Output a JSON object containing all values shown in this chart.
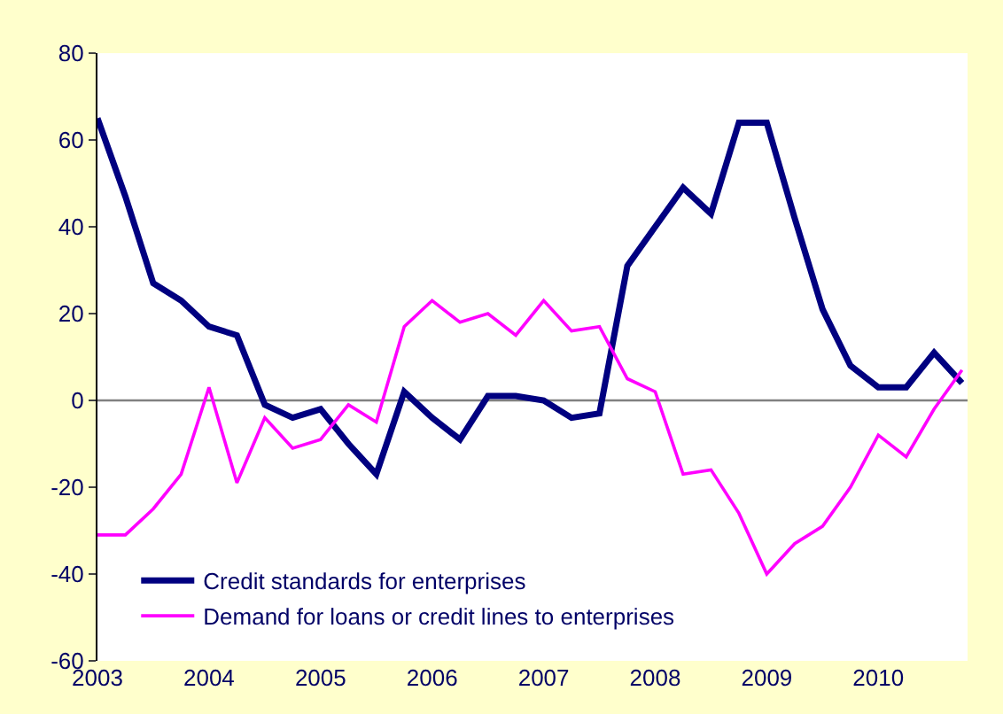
{
  "chart_data": {
    "type": "line",
    "x": [
      2003.0,
      2003.25,
      2003.5,
      2003.75,
      2004.0,
      2004.25,
      2004.5,
      2004.75,
      2005.0,
      2005.25,
      2005.5,
      2005.75,
      2006.0,
      2006.25,
      2006.5,
      2006.75,
      2007.0,
      2007.25,
      2007.5,
      2007.75,
      2008.0,
      2008.25,
      2008.5,
      2008.75,
      2009.0,
      2009.25,
      2009.5,
      2009.75,
      2010.0,
      2010.25,
      2010.5,
      2010.75
    ],
    "series": [
      {
        "name": "Credit standards for enterprises",
        "color": "#000080",
        "values": [
          65,
          47,
          27,
          23,
          17,
          15,
          -1,
          -4,
          -2,
          -10,
          -17,
          2,
          -4,
          -9,
          1,
          1,
          0,
          -4,
          -3,
          31,
          40,
          49,
          43,
          64,
          64,
          42,
          21,
          8,
          3,
          3,
          11,
          4
        ]
      },
      {
        "name": "Demand for loans or credit lines to enterprises",
        "color": "#ff00ff",
        "values": [
          -31,
          -31,
          -25,
          -17,
          3,
          -19,
          -4,
          -11,
          -9,
          -1,
          -5,
          17,
          23,
          18,
          20,
          15,
          23,
          16,
          17,
          5,
          2,
          -17,
          -16,
          -26,
          -40,
          -33,
          -29,
          -20,
          -8,
          -13,
          -2,
          7
        ]
      }
    ],
    "xlim": [
      2003,
      2010.8
    ],
    "xticks": [
      2003,
      2004,
      2005,
      2006,
      2007,
      2008,
      2009,
      2010
    ],
    "ylim": [
      -60,
      80
    ],
    "yticks": [
      -60,
      -40,
      -20,
      0,
      20,
      40,
      60,
      80
    ],
    "ref_lines": [
      {
        "axis": "y",
        "value": 0,
        "color": "#808080"
      }
    ],
    "grid": false,
    "legend": "bottom left"
  }
}
